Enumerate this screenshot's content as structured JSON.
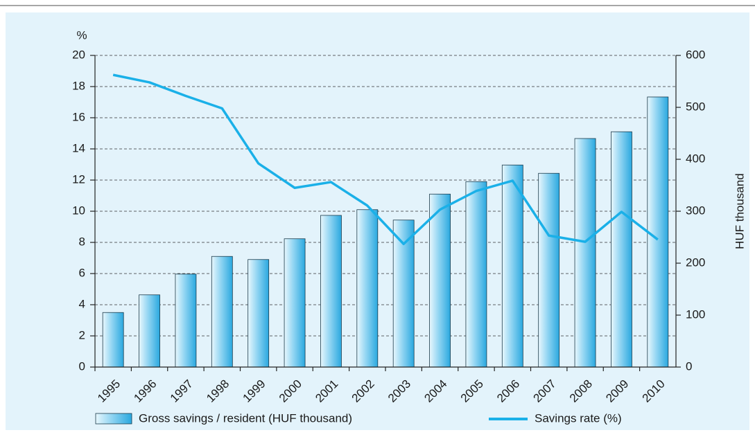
{
  "chart_data": {
    "type": "bar",
    "categories": [
      "1995",
      "1996",
      "1997",
      "1998",
      "1999",
      "2000",
      "2001",
      "2002",
      "2003",
      "2004",
      "2005",
      "2006",
      "2007",
      "2008",
      "2009",
      "2010"
    ],
    "series": [
      {
        "name": "Gross savings / resident (HUF thousand)",
        "type": "bar",
        "axis": "y2",
        "color": "#2aa8df",
        "values": [
          105,
          139,
          179,
          213,
          207,
          247,
          292,
          303,
          283,
          333,
          357,
          389,
          373,
          440,
          453,
          520
        ]
      },
      {
        "name": "Savings rate (%)",
        "type": "line",
        "color": "#1ab0e8",
        "values": [
          18.75,
          18.27,
          17.4,
          16.6,
          13.07,
          11.5,
          11.87,
          10.36,
          7.9,
          10.1,
          11.3,
          11.96,
          8.44,
          8.04,
          9.96,
          8.18
        ]
      }
    ],
    "y_label": "%",
    "y2_label": "HUF thousand",
    "ylim": [
      0,
      20
    ],
    "yticks": [
      0,
      2,
      4,
      6,
      8,
      10,
      12,
      14,
      16,
      18,
      20
    ],
    "y2lim": [
      0,
      600
    ],
    "y2ticks": [
      0,
      100,
      200,
      300,
      400,
      500,
      600
    ],
    "grid": true
  }
}
